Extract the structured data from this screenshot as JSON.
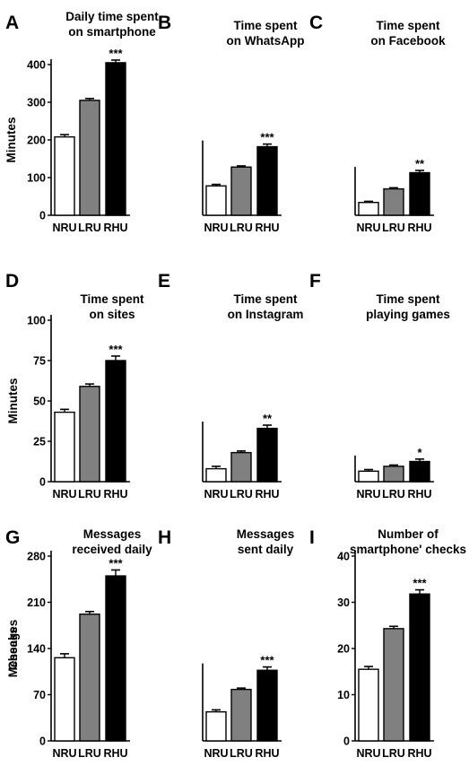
{
  "chart_data": [
    {
      "panel": "A",
      "type": "bar",
      "title_lines": [
        "Daily time spent",
        "on smartphone"
      ],
      "ylabel": "Minutes",
      "ylim": [
        0,
        400
      ],
      "yticks": [
        0,
        100,
        200,
        300,
        400
      ],
      "categories": [
        "NRU",
        "LRU",
        "RHU"
      ],
      "values": [
        208,
        305,
        405
      ],
      "errors": [
        6,
        5,
        7
      ],
      "significance": [
        "",
        "",
        "***"
      ],
      "colors": [
        "#ffffff",
        "#808080",
        "#000000"
      ]
    },
    {
      "panel": "B",
      "type": "bar",
      "title_lines": [
        "Time spent",
        "on WhatsApp"
      ],
      "ylabel": "",
      "ylim": [
        0,
        400
      ],
      "yticks": [],
      "categories": [
        "NRU",
        "LRU",
        "RHU"
      ],
      "values": [
        78,
        128,
        182
      ],
      "errors": [
        4,
        3,
        7
      ],
      "significance": [
        "",
        "",
        "***"
      ],
      "colors": [
        "#ffffff",
        "#808080",
        "#000000"
      ]
    },
    {
      "panel": "C",
      "type": "bar",
      "title_lines": [
        "Time spent",
        "on Facebook"
      ],
      "ylabel": "",
      "ylim": [
        0,
        400
      ],
      "yticks": [],
      "categories": [
        "NRU",
        "LRU",
        "RHU"
      ],
      "values": [
        34,
        70,
        113
      ],
      "errors": [
        3,
        3,
        6
      ],
      "significance": [
        "",
        "",
        "**"
      ],
      "colors": [
        "#ffffff",
        "#808080",
        "#000000"
      ]
    },
    {
      "panel": "D",
      "type": "bar",
      "title_lines": [
        "Time spent",
        "on sites"
      ],
      "ylabel": "Minutes",
      "ylim": [
        0,
        100
      ],
      "yticks": [
        0,
        25,
        50,
        75,
        100
      ],
      "categories": [
        "NRU",
        "LRU",
        "RHU"
      ],
      "values": [
        43,
        59,
        75
      ],
      "errors": [
        1.8,
        1.5,
        2.8
      ],
      "significance": [
        "",
        "",
        "***"
      ],
      "colors": [
        "#ffffff",
        "#808080",
        "#000000"
      ]
    },
    {
      "panel": "E",
      "type": "bar",
      "title_lines": [
        "Time spent",
        "on Instagram"
      ],
      "ylabel": "",
      "ylim": [
        0,
        100
      ],
      "yticks": [],
      "categories": [
        "NRU",
        "LRU",
        "RHU"
      ],
      "values": [
        8,
        18,
        33
      ],
      "errors": [
        1.5,
        1,
        2
      ],
      "significance": [
        "",
        "",
        "**"
      ],
      "colors": [
        "#ffffff",
        "#808080",
        "#000000"
      ]
    },
    {
      "panel": "F",
      "type": "bar",
      "title_lines": [
        "Time spent",
        "playing games"
      ],
      "ylabel": "",
      "ylim": [
        0,
        100
      ],
      "yticks": [],
      "categories": [
        "NRU",
        "LRU",
        "RHU"
      ],
      "values": [
        6.5,
        9.5,
        12.5
      ],
      "errors": [
        1,
        0.8,
        1.5
      ],
      "significance": [
        "",
        "",
        "*"
      ],
      "colors": [
        "#ffffff",
        "#808080",
        "#000000"
      ]
    },
    {
      "panel": "G",
      "type": "bar",
      "title_lines": [
        "Messages",
        "received daily"
      ],
      "ylabel": "Messages",
      "ylim": [
        0,
        280
      ],
      "yticks": [
        0,
        70,
        140,
        210,
        280
      ],
      "categories": [
        "NRU",
        "LRU",
        "RHU"
      ],
      "values": [
        126,
        192,
        250
      ],
      "errors": [
        6,
        4,
        9
      ],
      "significance": [
        "",
        "",
        "***"
      ],
      "colors": [
        "#ffffff",
        "#808080",
        "#000000"
      ]
    },
    {
      "panel": "H",
      "type": "bar",
      "title_lines": [
        "Messages",
        "sent daily"
      ],
      "ylabel": "",
      "ylim": [
        0,
        280
      ],
      "yticks": [],
      "categories": [
        "NRU",
        "LRU",
        "RHU"
      ],
      "values": [
        44,
        78,
        107
      ],
      "errors": [
        3,
        2,
        5
      ],
      "significance": [
        "",
        "",
        "***"
      ],
      "colors": [
        "#ffffff",
        "#808080",
        "#000000"
      ]
    },
    {
      "panel": "I",
      "type": "bar",
      "title_lines": [
        "Number of",
        "smartphone' checks"
      ],
      "ylabel": "Checks",
      "ylim": [
        0,
        40
      ],
      "yticks": [
        0,
        10,
        20,
        30,
        40
      ],
      "categories": [
        "NRU",
        "LRU",
        "RHU"
      ],
      "values": [
        15.5,
        24.3,
        31.8
      ],
      "errors": [
        0.6,
        0.5,
        0.9
      ],
      "significance": [
        "",
        "",
        "***"
      ],
      "colors": [
        "#ffffff",
        "#808080",
        "#000000"
      ]
    }
  ]
}
